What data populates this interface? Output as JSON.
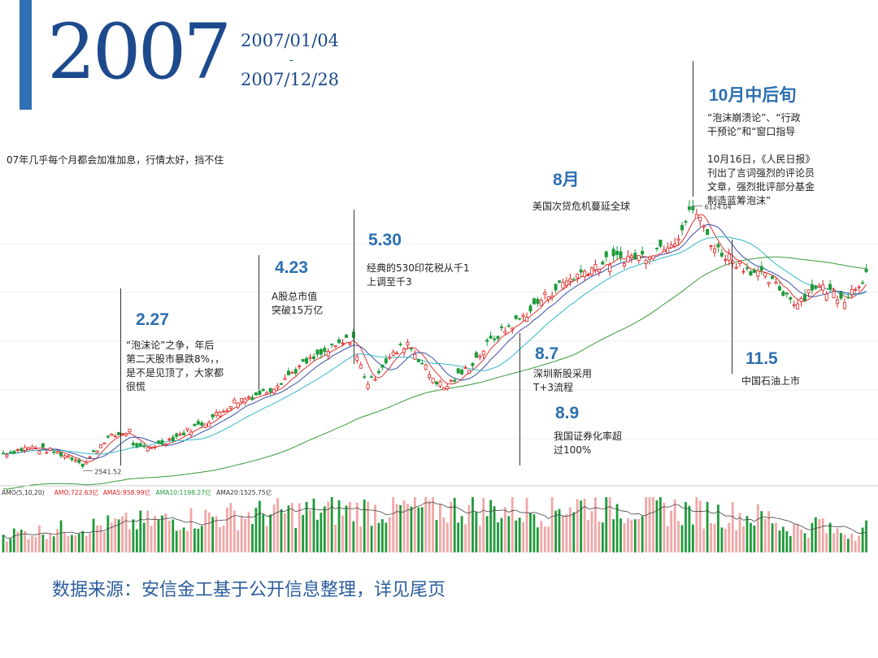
{
  "header": {
    "year": "2007",
    "date_start": "2007/01/04",
    "date_separator": "-",
    "date_end": "2007/12/28",
    "accent_color": "#2e6fb5"
  },
  "intro_note": "07年几乎每个月都会加准加息，行情太好，挡不住",
  "events": [
    {
      "id": "0227",
      "date": "2.27",
      "note": "“泡沫论”之争，年后\n第二天股市暴跌8%，，\n是不是见顶了，大家都\n很慌"
    },
    {
      "id": "0423",
      "date": "4.23",
      "note": "A股总市值\n突破15万亿"
    },
    {
      "id": "0530",
      "date": "5.30",
      "note": "经典的530印花税从千1\n上调至千3"
    },
    {
      "id": "aug",
      "date": "8月",
      "note": "美国次贷危机蔓延全球"
    },
    {
      "id": "0807",
      "date": "8.7",
      "note": "深圳新股采用\nT+3流程"
    },
    {
      "id": "0809",
      "date": "8.9",
      "note": "我国证券化率超\n过100%"
    },
    {
      "id": "oct",
      "date": "10月中后旬",
      "note": "“泡沫崩溃论”、“行政\n干预论”和“窗口指导\n\n10月16日，《人民日报》\n刊出了言词强烈的评论员\n文章，强烈批评部分基金\n制造蓝筹泡沫”"
    },
    {
      "id": "1105",
      "date": "11.5",
      "note": "中国石油上市"
    }
  ],
  "chart_data": {
    "type": "line",
    "subtype": "candlestick-with-volume",
    "x_range": [
      "2007/01/04",
      "2007/12/28"
    ],
    "price": {
      "series_points": [
        [
          "01-04",
          2715
        ],
        [
          "01-15",
          2800
        ],
        [
          "01-25",
          2740
        ],
        [
          "02-05",
          2612
        ],
        [
          "02-06",
          2541.52
        ],
        [
          "02-15",
          2910
        ],
        [
          "02-26",
          3040
        ],
        [
          "02-27",
          2771
        ],
        [
          "03-05",
          2795
        ],
        [
          "03-15",
          2925
        ],
        [
          "03-30",
          3180
        ],
        [
          "04-10",
          3440
        ],
        [
          "04-23",
          3580
        ],
        [
          "05-08",
          3950
        ],
        [
          "05-29",
          4334
        ],
        [
          "05-30",
          4050
        ],
        [
          "06-04",
          3670
        ],
        [
          "06-10",
          3960
        ],
        [
          "06-20",
          4260
        ],
        [
          "06-29",
          3820
        ],
        [
          "07-05",
          3620
        ],
        [
          "07-15",
          3900
        ],
        [
          "07-25",
          4300
        ],
        [
          "08-07",
          4620
        ],
        [
          "08-15",
          4870
        ],
        [
          "08-24",
          5100
        ],
        [
          "09-05",
          5310
        ],
        [
          "09-15",
          5420
        ],
        [
          "09-25",
          5450
        ],
        [
          "10-09",
          5700
        ],
        [
          "10-16",
          6124.04
        ],
        [
          "10-25",
          5560
        ],
        [
          "11-05",
          5330
        ],
        [
          "11-15",
          5150
        ],
        [
          "11-28",
          4800
        ],
        [
          "12-05",
          5050
        ],
        [
          "12-18",
          4870
        ],
        [
          "12-28",
          5262
        ]
      ],
      "annotations": [
        {
          "label": "2541.52",
          "at": "02-06"
        },
        {
          "label": "6124.04",
          "at": "10-16"
        }
      ],
      "ma_legend": []
    },
    "volume": {
      "legend": [
        {
          "label": "AMO(5,10,20)",
          "color": "#333333"
        },
        {
          "label": "AMO:722.63亿",
          "color": "#e02020"
        },
        {
          "label": "AMA5:958.99亿",
          "color": "#e02020"
        },
        {
          "label": "AMA10:1198.27亿",
          "color": "#1f9a3a"
        },
        {
          "label": "AMA20:1525.75亿",
          "color": "#333333"
        }
      ]
    },
    "colors": {
      "up": "#e02020",
      "down": "#1f9a3a",
      "ma5": "#e23030",
      "ma10": "#3a4ea8",
      "ma20": "#32b8c8",
      "ma60": "#3a9a3a"
    }
  },
  "footer": {
    "source": "数据来源：安信金工基于公开信息整理，详见尾页"
  }
}
